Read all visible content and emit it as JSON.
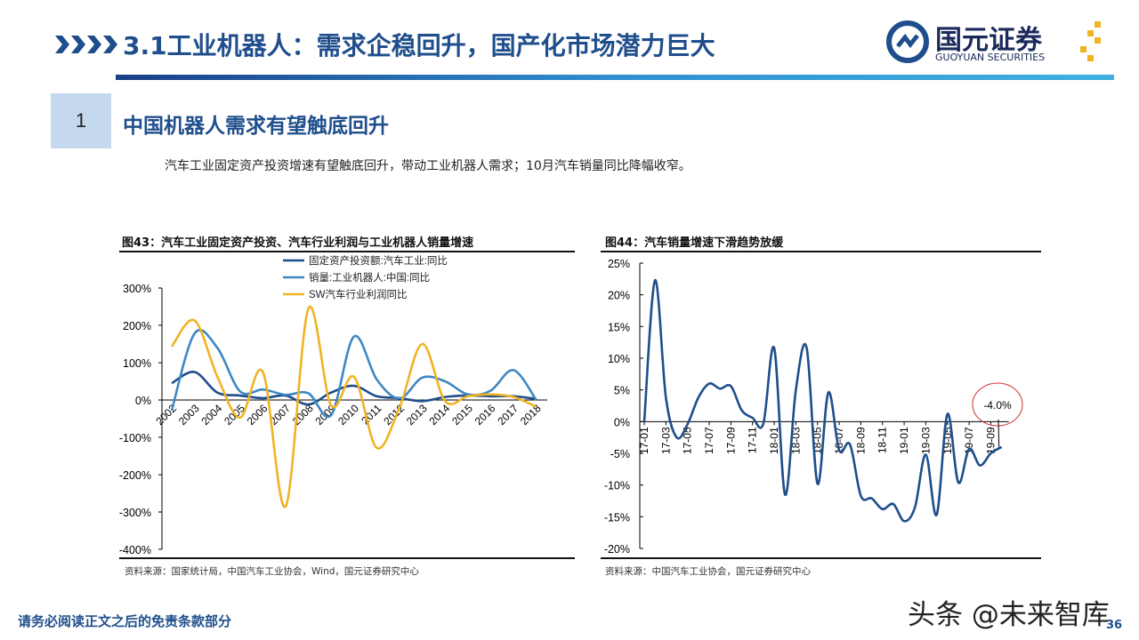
{
  "header": {
    "title": "3.1工业机器人：需求企稳回升，国产化市场潜力巨大",
    "logo_cn": "国元证券",
    "logo_en": "GUOYUAN SECURITIES"
  },
  "section": {
    "number": "1",
    "title": "中国机器人需求有望触底回升"
  },
  "intro": "汽车工业固定资产投资增速有望触底回升，带动工业机器人需求；10月汽车销量同比降幅收窄。",
  "colors": {
    "brand": "#1f4e8c",
    "series_dark": "#1f4e8c",
    "series_mid": "#3f87c2",
    "series_gold": "#f0b323",
    "annotation": "#d03030"
  },
  "chart_data": [
    {
      "type": "line",
      "title": "图43：汽车工业固定资产投资、汽车行业利润与工业机器人销量增速",
      "categories": [
        "2002",
        "2003",
        "2004",
        "2005",
        "2006",
        "2007",
        "2008",
        "2009",
        "2010",
        "2011",
        "2012",
        "2013",
        "2014",
        "2015",
        "2016",
        "2017",
        "2018"
      ],
      "yticks": [
        "300%",
        "200%",
        "100%",
        "0%",
        "-100%",
        "-200%",
        "-300%",
        "-400%"
      ],
      "ylim": [
        -400,
        300
      ],
      "unit": "%",
      "legend_position": "top",
      "series": [
        {
          "name": "固定资产投资额:汽车工业:同比",
          "color": "#1f4e8c",
          "values": [
            45,
            75,
            20,
            12,
            5,
            12,
            -12,
            20,
            38,
            10,
            5,
            -3,
            8,
            12,
            10,
            10,
            3
          ]
        },
        {
          "name": "销量:工业机器人:中国:同比",
          "color": "#3f87c2",
          "values": [
            -28,
            178,
            140,
            23,
            28,
            14,
            18,
            -40,
            170,
            55,
            4,
            60,
            50,
            15,
            25,
            80,
            0
          ]
        },
        {
          "name": "SW汽车行业利润同比",
          "color": "#f0b323",
          "values": [
            143,
            213,
            63,
            -47,
            75,
            -285,
            245,
            -15,
            62,
            -128,
            -20,
            150,
            -3,
            10,
            15,
            8,
            -18
          ]
        }
      ],
      "source": "资料来源：国家统计局，中国汽车工业协会，Wind，国元证券研究中心"
    },
    {
      "type": "line",
      "title": "图44：汽车销量增速下滑趋势放缓",
      "categories": [
        "17-01",
        "17-02",
        "17-03",
        "17-04",
        "17-05",
        "17-06",
        "17-07",
        "17-08",
        "17-09",
        "17-10",
        "17-11",
        "17-12",
        "18-01",
        "18-02",
        "18-03",
        "18-04",
        "18-05",
        "18-06",
        "18-07",
        "18-08",
        "18-09",
        "18-10",
        "18-11",
        "18-12",
        "19-01",
        "19-02",
        "19-03",
        "19-04",
        "19-05",
        "19-06",
        "19-07",
        "19-08",
        "19-09",
        "19-10"
      ],
      "tick_labels": [
        "17-01",
        "17-03",
        "17-05",
        "17-07",
        "17-09",
        "17-11",
        "18-01",
        "18-03",
        "18-05",
        "18-07",
        "18-09",
        "18-11",
        "19-01",
        "19-03",
        "19-05",
        "19-07",
        "19-09"
      ],
      "yticks": [
        "25%",
        "20%",
        "15%",
        "10%",
        "5%",
        "0%",
        "-5%",
        "-10%",
        "-15%",
        "-20%"
      ],
      "ylim": [
        -20,
        25
      ],
      "unit": "%",
      "series": [
        {
          "color": "#1f4e8c",
          "values": [
            0,
            22.3,
            3.8,
            -2.5,
            -0.4,
            3.8,
            6.0,
            5.2,
            5.6,
            1.8,
            0.6,
            -0.3,
            11.6,
            -11.5,
            5.0,
            11.6,
            -9.8,
            4.6,
            -4.5,
            -3.6,
            -11.7,
            -12.1,
            -13.8,
            -13.0,
            -15.7,
            -13.5,
            -5.2,
            -14.7,
            1.2,
            -9.6,
            -4.3,
            -6.9,
            -5.0,
            -4.0
          ]
        }
      ],
      "annotation": "-4.0%",
      "source": "资料来源：中国汽车工业协会，国元证券研究中心"
    }
  ],
  "footer": {
    "disclaimer": "请务必阅读正文之后的免责条款部分",
    "watermark": "头条 @未来智库",
    "page": "36"
  }
}
